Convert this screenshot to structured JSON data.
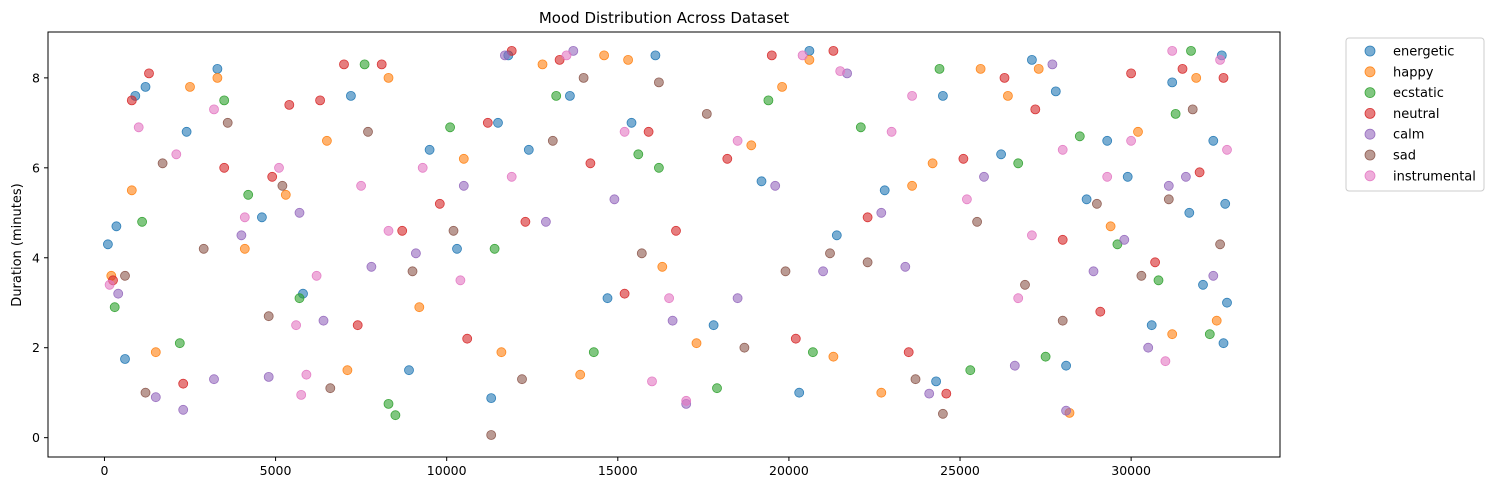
{
  "chart_data": {
    "type": "scatter",
    "title": "Mood Distribution Across Dataset",
    "xlabel": "",
    "ylabel": "Duration (minutes)",
    "xlim": [
      -1650,
      34350
    ],
    "ylim": [
      -0.43,
      9.02
    ],
    "x_ticks": [
      0,
      5000,
      10000,
      15000,
      20000,
      25000,
      30000
    ],
    "y_ticks": [
      0,
      2,
      4,
      6,
      8
    ],
    "grid": false,
    "legend_position": "outside-top-right",
    "point_alpha": 0.6,
    "series": [
      {
        "name": "energetic",
        "color": "#1f77b4",
        "x": [
          100,
          350,
          600,
          900,
          1200,
          2400,
          3300,
          4600,
          5800,
          7200,
          8900,
          9500,
          10300,
          11300,
          11500,
          11800,
          12400,
          13600,
          14700,
          15400,
          16100,
          17800,
          19200,
          20300,
          20600,
          21400,
          22800,
          24300,
          24500,
          26200,
          27100,
          27800,
          28100,
          28700,
          29300,
          29900,
          30600,
          31200,
          31700,
          32100,
          32400,
          32650,
          32700,
          32750,
          32800
        ],
        "y": [
          4.3,
          4.7,
          1.75,
          7.6,
          7.8,
          6.8,
          8.2,
          4.9,
          3.2,
          7.6,
          1.5,
          6.4,
          4.2,
          0.88,
          7.0,
          8.5,
          6.4,
          7.6,
          3.1,
          7.0,
          8.5,
          2.5,
          5.7,
          1.0,
          8.6,
          4.5,
          5.5,
          1.25,
          7.6,
          6.3,
          8.4,
          7.7,
          1.6,
          5.3,
          6.6,
          5.8,
          2.5,
          7.9,
          5.0,
          3.4,
          6.6,
          8.5,
          2.1,
          5.2,
          3.0
        ]
      },
      {
        "name": "happy",
        "color": "#ff7f0e",
        "x": [
          200,
          800,
          1500,
          2500,
          3300,
          4100,
          5300,
          6500,
          7100,
          8300,
          9200,
          10500,
          11600,
          12800,
          13900,
          14600,
          15300,
          16300,
          17300,
          18900,
          19800,
          20600,
          21300,
          22700,
          23600,
          24200,
          25600,
          26400,
          27300,
          28200,
          29400,
          30200,
          31200,
          31900,
          32500
        ],
        "y": [
          3.6,
          5.5,
          1.9,
          7.8,
          8.0,
          4.2,
          5.4,
          6.6,
          1.5,
          8.0,
          2.9,
          6.2,
          1.9,
          8.3,
          1.4,
          8.5,
          8.4,
          3.8,
          2.1,
          6.5,
          7.8,
          8.4,
          1.8,
          1.0,
          5.6,
          6.1,
          8.2,
          7.6,
          8.2,
          0.55,
          4.7,
          6.8,
          2.3,
          8.0,
          2.6
        ]
      },
      {
        "name": "ecstatic",
        "color": "#2ca02c",
        "x": [
          300,
          1100,
          2200,
          3500,
          4200,
          5700,
          7600,
          8300,
          8500,
          10100,
          11400,
          13200,
          14300,
          15600,
          16200,
          17900,
          19400,
          20700,
          22100,
          24400,
          25300,
          26700,
          27500,
          28500,
          29600,
          30800,
          31300,
          31750,
          32300
        ],
        "y": [
          2.9,
          4.8,
          2.1,
          7.5,
          5.4,
          3.1,
          8.3,
          0.75,
          0.5,
          6.9,
          4.2,
          7.6,
          1.9,
          6.3,
          6.0,
          1.1,
          7.5,
          1.9,
          6.9,
          8.2,
          1.5,
          6.1,
          1.8,
          6.7,
          4.3,
          3.5,
          7.2,
          8.6,
          2.3
        ]
      },
      {
        "name": "neutral",
        "color": "#d62728",
        "x": [
          250,
          800,
          1300,
          2300,
          3500,
          4900,
          5400,
          6300,
          7000,
          7400,
          8100,
          8700,
          9800,
          10600,
          11200,
          11900,
          12300,
          13300,
          14200,
          15200,
          15900,
          16700,
          18200,
          19500,
          20200,
          21300,
          22300,
          23500,
          24600,
          25100,
          26300,
          27200,
          28000,
          29100,
          30000,
          30700,
          31500,
          32000,
          32700
        ],
        "y": [
          3.5,
          7.5,
          8.1,
          1.2,
          6.0,
          5.8,
          7.4,
          7.5,
          8.3,
          2.5,
          8.3,
          4.6,
          5.2,
          2.2,
          7.0,
          8.6,
          4.8,
          8.4,
          6.1,
          3.2,
          6.8,
          4.6,
          6.2,
          8.5,
          2.2,
          8.6,
          4.9,
          1.9,
          0.98,
          6.2,
          8.0,
          7.3,
          4.4,
          2.8,
          8.1,
          3.9,
          8.2,
          5.9,
          8.0
        ]
      },
      {
        "name": "calm",
        "color": "#9467bd",
        "x": [
          400,
          1500,
          2300,
          3200,
          4000,
          4800,
          5700,
          6400,
          7800,
          9100,
          10500,
          11700,
          12900,
          13700,
          14900,
          16600,
          17000,
          18500,
          19600,
          21000,
          21700,
          22700,
          23400,
          24100,
          25700,
          26600,
          27700,
          28100,
          28900,
          29800,
          30500,
          31100,
          31600,
          32400
        ],
        "y": [
          3.2,
          0.9,
          0.62,
          1.3,
          4.5,
          1.35,
          5.0,
          2.6,
          3.8,
          4.1,
          5.6,
          8.5,
          4.8,
          8.6,
          5.3,
          2.6,
          0.75,
          3.1,
          5.6,
          3.7,
          8.1,
          5.0,
          3.8,
          0.98,
          5.8,
          1.6,
          8.3,
          0.6,
          3.7,
          4.4,
          2.0,
          5.6,
          5.8,
          3.6
        ]
      },
      {
        "name": "sad",
        "color": "#8c564b",
        "x": [
          600,
          1200,
          1700,
          2900,
          3600,
          4800,
          5200,
          6600,
          7700,
          9000,
          10200,
          11300,
          12200,
          13100,
          14000,
          15700,
          16200,
          17600,
          18700,
          19900,
          21200,
          22300,
          23700,
          24500,
          25500,
          26900,
          28000,
          29000,
          30300,
          31100,
          31800,
          32600
        ],
        "y": [
          3.6,
          1.0,
          6.1,
          4.2,
          7.0,
          2.7,
          5.6,
          1.1,
          6.8,
          3.7,
          4.6,
          0.06,
          1.3,
          6.6,
          8.0,
          4.1,
          7.9,
          7.2,
          2.0,
          3.7,
          4.1,
          3.9,
          1.3,
          0.53,
          4.8,
          3.4,
          2.6,
          5.2,
          3.6,
          5.3,
          7.3,
          4.3
        ]
      },
      {
        "name": "instrumental",
        "color": "#e377c2",
        "x": [
          150,
          1000,
          2100,
          3200,
          4100,
          5100,
          5600,
          5750,
          5900,
          6200,
          7500,
          8300,
          9300,
          10400,
          11900,
          13500,
          15200,
          16000,
          16500,
          17000,
          18500,
          20400,
          21500,
          23000,
          23600,
          25200,
          26700,
          27100,
          28000,
          29300,
          30000,
          31000,
          31200,
          32600,
          32800
        ],
        "y": [
          3.4,
          6.9,
          6.3,
          7.3,
          4.9,
          6.0,
          2.5,
          0.95,
          1.4,
          3.6,
          5.6,
          4.6,
          6.0,
          3.5,
          5.8,
          8.5,
          6.8,
          1.25,
          3.1,
          0.82,
          6.6,
          8.5,
          8.15,
          6.8,
          7.6,
          5.3,
          3.1,
          4.5,
          6.4,
          5.8,
          6.6,
          1.7,
          8.6,
          8.4,
          6.4
        ]
      }
    ]
  }
}
